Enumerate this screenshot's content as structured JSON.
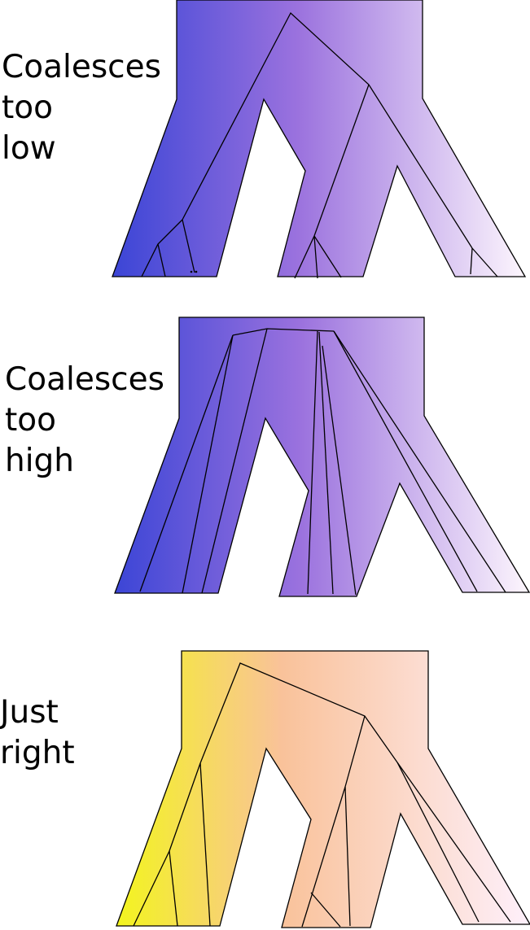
{
  "panels": [
    {
      "id": "low",
      "label_lines": [
        "Coalesces",
        "too",
        "low"
      ],
      "gradient": [
        "#3b45d6",
        "#9b72de",
        "#fdf6fd"
      ]
    },
    {
      "id": "high",
      "label_lines": [
        "Coalesces",
        "too",
        "high"
      ],
      "gradient": [
        "#3b45d6",
        "#9b72de",
        "#fdf6fd"
      ]
    },
    {
      "id": "right",
      "label_lines": [
        "Just",
        "right"
      ],
      "gradient": [
        "#f3f51e",
        "#f9c29a",
        "#fef0fb"
      ]
    }
  ],
  "colors": {
    "outline": "#000000",
    "background": "#ffffff"
  }
}
